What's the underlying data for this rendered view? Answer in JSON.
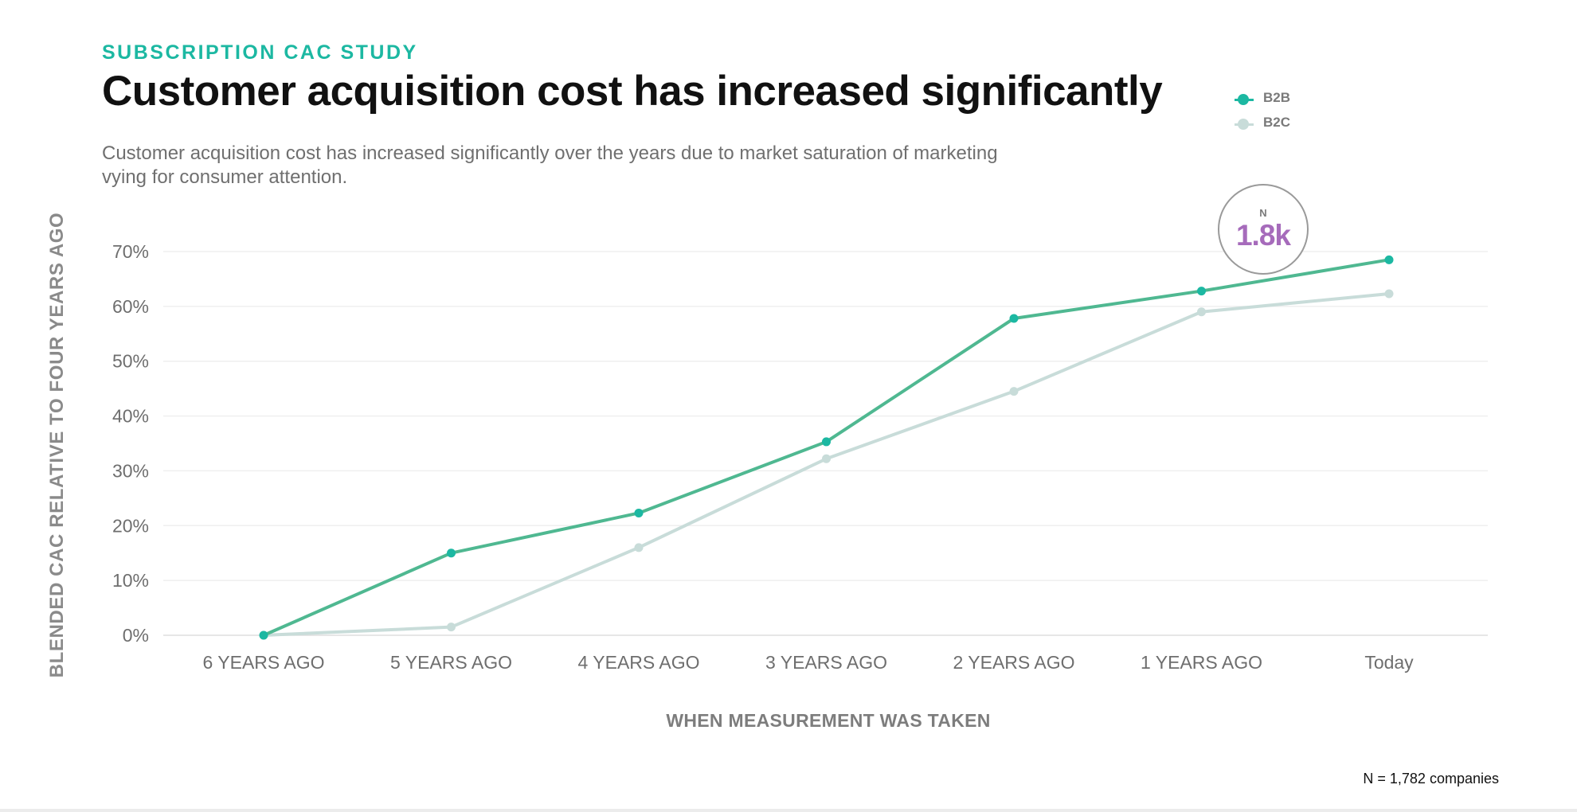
{
  "eyebrow": "SUBSCRIPTION CAC STUDY",
  "title": "Customer acquisition cost has increased significantly",
  "subtitle": "Customer acquisition cost has increased significantly over the years due to market saturation of marketing vying for consumer attention.",
  "badge": {
    "label": "N",
    "value": "1.8k"
  },
  "footnote": "N = 1,782 companies",
  "colors": {
    "accent": "#1cb8a2",
    "b2b_line": "#4fb891",
    "b2b_point": "#1cb8a2",
    "b2c": "#c8dcd9",
    "badge_value": "#a66bbb"
  },
  "chart_data": {
    "type": "line",
    "title": "Customer acquisition cost has increased significantly",
    "xlabel": "WHEN MEASUREMENT WAS TAKEN",
    "ylabel": "BLENDED CAC RELATIVE TO FOUR YEARS AGO",
    "categories": [
      "6 YEARS AGO",
      "5 YEARS AGO",
      "4 YEARS AGO",
      "3 YEARS AGO",
      "2 YEARS AGO",
      "1 YEARS AGO",
      "Today"
    ],
    "y_ticks": [
      "0%",
      "10%",
      "20%",
      "30%",
      "40%",
      "50%",
      "60%",
      "70%"
    ],
    "ylim": [
      0,
      70
    ],
    "grid": true,
    "legend": "top-right",
    "series": [
      {
        "name": "B2B",
        "values": [
          0,
          15,
          22.3,
          35.3,
          57.8,
          62.8,
          68.5
        ]
      },
      {
        "name": "B2C",
        "values": [
          0,
          1.5,
          16,
          32.2,
          44.5,
          59,
          62.3
        ]
      }
    ]
  }
}
